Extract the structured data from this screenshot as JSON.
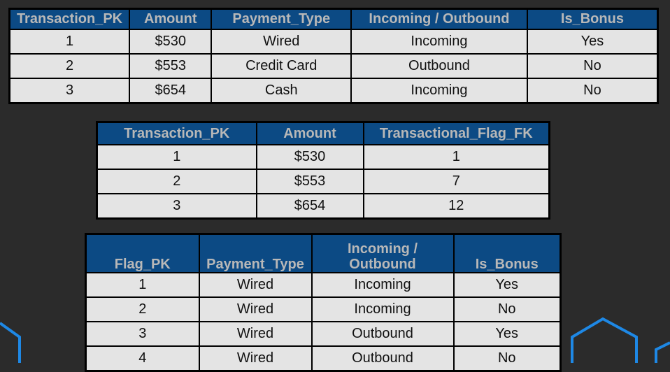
{
  "transactions": {
    "headers": [
      "Transaction_PK",
      "Amount",
      "Payment_Type",
      "Incoming / Outbound",
      "Is_Bonus"
    ],
    "rows": [
      [
        "1",
        "$530",
        "Wired",
        "Incoming",
        "Yes"
      ],
      [
        "2",
        "$553",
        "Credit Card",
        "Outbound",
        "No"
      ],
      [
        "3",
        "$654",
        "Cash",
        "Incoming",
        "No"
      ]
    ]
  },
  "transactions_fk": {
    "headers": [
      "Transaction_PK",
      "Amount",
      "Transactional_Flag_FK"
    ],
    "rows": [
      [
        "1",
        "$530",
        "1"
      ],
      [
        "2",
        "$553",
        "7"
      ],
      [
        "3",
        "$654",
        "12"
      ]
    ]
  },
  "flags": {
    "headers": [
      "Flag_PK",
      "Payment_Type",
      "Incoming / Outbound",
      "Is_Bonus"
    ],
    "rows": [
      [
        "1",
        "Wired",
        "Incoming",
        "Yes"
      ],
      [
        "2",
        "Wired",
        "Incoming",
        "No"
      ],
      [
        "3",
        "Wired",
        "Outbound",
        "Yes"
      ],
      [
        "4",
        "Wired",
        "Outbound",
        "No"
      ]
    ]
  },
  "colors": {
    "background": "#2b2b2b",
    "header_fill": "#0c4a84",
    "header_text": "#b8b8b8",
    "cell_fill": "#e4e4e4",
    "decoration_stroke": "#1e88e5"
  }
}
